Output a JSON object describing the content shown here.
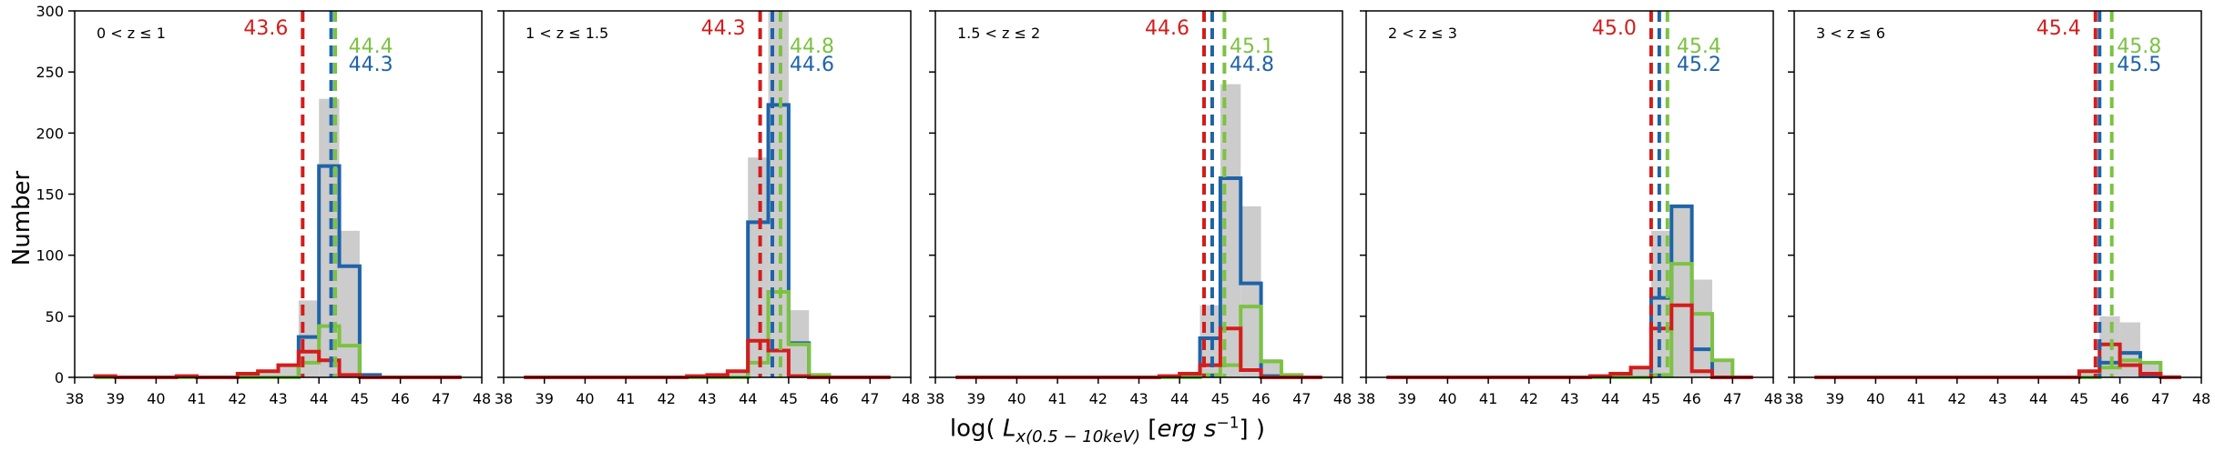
{
  "figure": {
    "ylabel": "Number",
    "xlabel": "log( L_{x(0.5-10keV)} [erg s^{-1}] )",
    "xticks": [
      "38",
      "39",
      "40",
      "41",
      "42",
      "43",
      "44",
      "45",
      "46",
      "47",
      "48"
    ],
    "yticks": [
      "0",
      "50",
      "100",
      "150",
      "200",
      "250",
      "300"
    ]
  },
  "colors": {
    "all": "#cccccc",
    "blue": "#1f63a8",
    "green": "#7cc242",
    "red": "#d41c1c"
  },
  "chart_data": [
    {
      "type": "bar",
      "title": "0 < z ≤ 1",
      "xlim": [
        38,
        48
      ],
      "ylim": [
        0,
        300
      ],
      "bin_edges": [
        38.5,
        39,
        39.5,
        40,
        40.5,
        41,
        41.5,
        42,
        42.5,
        43,
        43.5,
        44,
        44.5,
        45,
        45.5,
        46,
        46.5,
        47,
        47.5
      ],
      "series": [
        {
          "key": "all",
          "values": [
            1,
            0,
            0,
            0,
            1,
            0,
            0,
            3,
            5,
            10,
            63,
            228,
            120,
            2,
            0,
            0,
            0,
            0
          ]
        },
        {
          "key": "blue",
          "values": [
            0,
            0,
            0,
            0,
            0,
            0,
            0,
            0,
            0,
            0,
            33,
            173,
            91,
            2,
            0,
            0,
            0,
            0
          ]
        },
        {
          "key": "green",
          "values": [
            0,
            0,
            0,
            0,
            0,
            0,
            0,
            0,
            0,
            0,
            12,
            42,
            26,
            0,
            0,
            0,
            0,
            0
          ]
        },
        {
          "key": "red",
          "values": [
            1,
            0,
            0,
            0,
            1,
            0,
            0,
            3,
            5,
            10,
            21,
            14,
            2,
            0,
            0,
            0,
            0,
            0
          ]
        }
      ],
      "medians": [
        {
          "key": "red",
          "value": 43.6,
          "label": "43.6"
        },
        {
          "key": "green",
          "value": 44.4,
          "label": "44.4"
        },
        {
          "key": "blue",
          "value": 44.3,
          "label": "44.3"
        }
      ]
    },
    {
      "type": "bar",
      "title": "1 < z ≤ 1.5",
      "xlim": [
        38,
        48
      ],
      "ylim": [
        0,
        300
      ],
      "bin_edges": [
        38.5,
        39,
        39.5,
        40,
        40.5,
        41,
        41.5,
        42,
        42.5,
        43,
        43.5,
        44,
        44.5,
        45,
        45.5,
        46,
        46.5,
        47,
        47.5
      ],
      "series": [
        {
          "key": "all",
          "values": [
            0,
            0,
            0,
            0,
            0,
            0,
            0,
            0,
            1,
            2,
            5,
            180,
            300,
            55,
            2,
            0,
            0,
            0
          ]
        },
        {
          "key": "blue",
          "values": [
            0,
            0,
            0,
            0,
            0,
            0,
            0,
            0,
            0,
            0,
            0,
            127,
            223,
            28,
            0,
            0,
            0,
            0
          ]
        },
        {
          "key": "green",
          "values": [
            0,
            0,
            0,
            0,
            0,
            0,
            0,
            0,
            0,
            0,
            0,
            12,
            70,
            27,
            2,
            0,
            0,
            0
          ]
        },
        {
          "key": "red",
          "values": [
            0,
            0,
            0,
            0,
            0,
            0,
            0,
            0,
            1,
            2,
            5,
            30,
            22,
            1,
            0,
            0,
            0,
            0
          ]
        }
      ],
      "medians": [
        {
          "key": "red",
          "value": 44.3,
          "label": "44.3"
        },
        {
          "key": "green",
          "value": 44.8,
          "label": "44.8"
        },
        {
          "key": "blue",
          "value": 44.6,
          "label": "44.6"
        }
      ]
    },
    {
      "type": "bar",
      "title": "1.5 < z ≤ 2",
      "xlim": [
        38,
        48
      ],
      "ylim": [
        0,
        300
      ],
      "bin_edges": [
        38.5,
        39,
        39.5,
        40,
        40.5,
        41,
        41.5,
        42,
        42.5,
        43,
        43.5,
        44,
        44.5,
        45,
        45.5,
        46,
        46.5,
        47,
        47.5
      ],
      "series": [
        {
          "key": "all",
          "values": [
            0,
            0,
            0,
            0,
            0,
            0,
            0,
            0,
            0,
            0,
            1,
            3,
            59,
            240,
            140,
            15,
            2,
            0
          ]
        },
        {
          "key": "blue",
          "values": [
            0,
            0,
            0,
            0,
            0,
            0,
            0,
            0,
            0,
            0,
            0,
            0,
            32,
            163,
            77,
            1,
            0,
            0
          ]
        },
        {
          "key": "green",
          "values": [
            0,
            0,
            0,
            0,
            0,
            0,
            0,
            0,
            0,
            0,
            0,
            0,
            2,
            10,
            58,
            13,
            2,
            0
          ]
        },
        {
          "key": "red",
          "values": [
            0,
            0,
            0,
            0,
            0,
            0,
            0,
            0,
            0,
            0,
            1,
            3,
            10,
            40,
            6,
            0,
            0,
            0
          ]
        }
      ],
      "medians": [
        {
          "key": "red",
          "value": 44.6,
          "label": "44.6"
        },
        {
          "key": "green",
          "value": 45.1,
          "label": "45.1"
        },
        {
          "key": "blue",
          "value": 44.8,
          "label": "44.8"
        }
      ]
    },
    {
      "type": "bar",
      "title": "2 < z ≤ 3",
      "xlim": [
        38,
        48
      ],
      "ylim": [
        0,
        300
      ],
      "bin_edges": [
        38.5,
        39,
        39.5,
        40,
        40.5,
        41,
        41.5,
        42,
        42.5,
        43,
        43.5,
        44,
        44.5,
        45,
        45.5,
        46,
        46.5,
        47,
        47.5
      ],
      "series": [
        {
          "key": "all",
          "values": [
            0,
            0,
            0,
            0,
            0,
            0,
            0,
            0,
            0,
            0,
            1,
            3,
            8,
            120,
            140,
            80,
            15,
            1
          ]
        },
        {
          "key": "blue",
          "values": [
            0,
            0,
            0,
            0,
            0,
            0,
            0,
            0,
            0,
            0,
            0,
            0,
            0,
            65,
            140,
            23,
            0,
            0
          ]
        },
        {
          "key": "green",
          "values": [
            0,
            0,
            0,
            0,
            0,
            0,
            0,
            0,
            0,
            0,
            0,
            0,
            0,
            2,
            93,
            52,
            14,
            0
          ]
        },
        {
          "key": "red",
          "values": [
            0,
            0,
            0,
            0,
            0,
            0,
            0,
            0,
            0,
            0,
            1,
            3,
            8,
            40,
            59,
            5,
            0,
            0
          ]
        }
      ],
      "medians": [
        {
          "key": "red",
          "value": 45.0,
          "label": "45.0"
        },
        {
          "key": "green",
          "value": 45.4,
          "label": "45.4"
        },
        {
          "key": "blue",
          "value": 45.2,
          "label": "45.2"
        }
      ]
    },
    {
      "type": "bar",
      "title": "3 < z ≤ 6",
      "xlim": [
        38,
        48
      ],
      "ylim": [
        0,
        300
      ],
      "bin_edges": [
        38.5,
        39,
        39.5,
        40,
        40.5,
        41,
        41.5,
        42,
        42.5,
        43,
        43.5,
        44,
        44.5,
        45,
        45.5,
        46,
        46.5,
        47,
        47.5
      ],
      "series": [
        {
          "key": "all",
          "values": [
            0,
            0,
            0,
            0,
            0,
            0,
            0,
            0,
            0,
            0,
            0,
            0,
            0,
            5,
            50,
            45,
            12,
            2
          ]
        },
        {
          "key": "blue",
          "values": [
            0,
            0,
            0,
            0,
            0,
            0,
            0,
            0,
            0,
            0,
            0,
            0,
            0,
            0,
            12,
            20,
            2,
            0
          ]
        },
        {
          "key": "green",
          "values": [
            0,
            0,
            0,
            0,
            0,
            0,
            0,
            0,
            0,
            0,
            0,
            0,
            0,
            0,
            8,
            14,
            12,
            0
          ]
        },
        {
          "key": "red",
          "values": [
            0,
            0,
            0,
            0,
            0,
            0,
            0,
            0,
            0,
            0,
            0,
            0,
            0,
            5,
            27,
            10,
            3,
            0
          ]
        }
      ],
      "medians": [
        {
          "key": "red",
          "value": 45.4,
          "label": "45.4"
        },
        {
          "key": "green",
          "value": 45.8,
          "label": "45.8"
        },
        {
          "key": "blue",
          "value": 45.5,
          "label": "45.5"
        }
      ]
    }
  ]
}
